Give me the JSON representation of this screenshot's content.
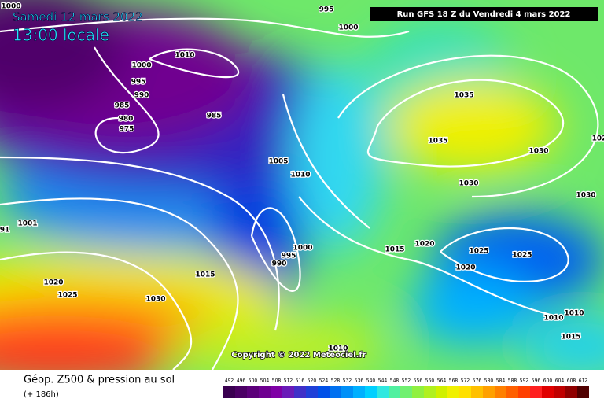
{
  "header": {
    "date": "Samedi 12 mars 2022",
    "time": "13:00 locale",
    "run": "Run GFS 18 Z du Vendredi 4 mars 2022"
  },
  "copyright": "Copyright © 2022 Meteociel.fr",
  "footer": {
    "title": "Géop. Z500 & pression au sol",
    "lead": "(+ 186h)"
  },
  "isobar_labels": [
    995,
    1000,
    1000,
    1010,
    1000,
    995,
    990,
    985,
    980,
    975,
    985,
    1005,
    1010,
    1035,
    1035,
    1030,
    1030,
    1030,
    102,
    1001,
    91,
    1000,
    995,
    990,
    1015,
    1020,
    1025,
    1025,
    1020,
    1015,
    1030,
    1020,
    1025,
    1010,
    1010,
    1015,
    1010
  ],
  "legend": {
    "values": [
      492,
      496,
      500,
      504,
      508,
      512,
      516,
      520,
      524,
      528,
      532,
      536,
      540,
      544,
      548,
      552,
      556,
      560,
      564,
      568,
      572,
      576,
      580,
      584,
      588,
      592,
      596,
      600,
      604,
      608,
      612
    ],
    "colors": [
      "#3a0050",
      "#4b0064",
      "#5c007a",
      "#6e0090",
      "#7f00a5",
      "#6a1bb8",
      "#4030c8",
      "#2040d8",
      "#0050e8",
      "#0070f0",
      "#0090f8",
      "#00b0ff",
      "#00d0ff",
      "#30e8e0",
      "#50f0a0",
      "#70f070",
      "#90f040",
      "#b0f020",
      "#d0f000",
      "#f0f000",
      "#ffe000",
      "#ffc000",
      "#ffa000",
      "#ff8000",
      "#ff6000",
      "#ff4000",
      "#ff2020",
      "#e00000",
      "#c00000",
      "#900000",
      "#500000"
    ]
  }
}
